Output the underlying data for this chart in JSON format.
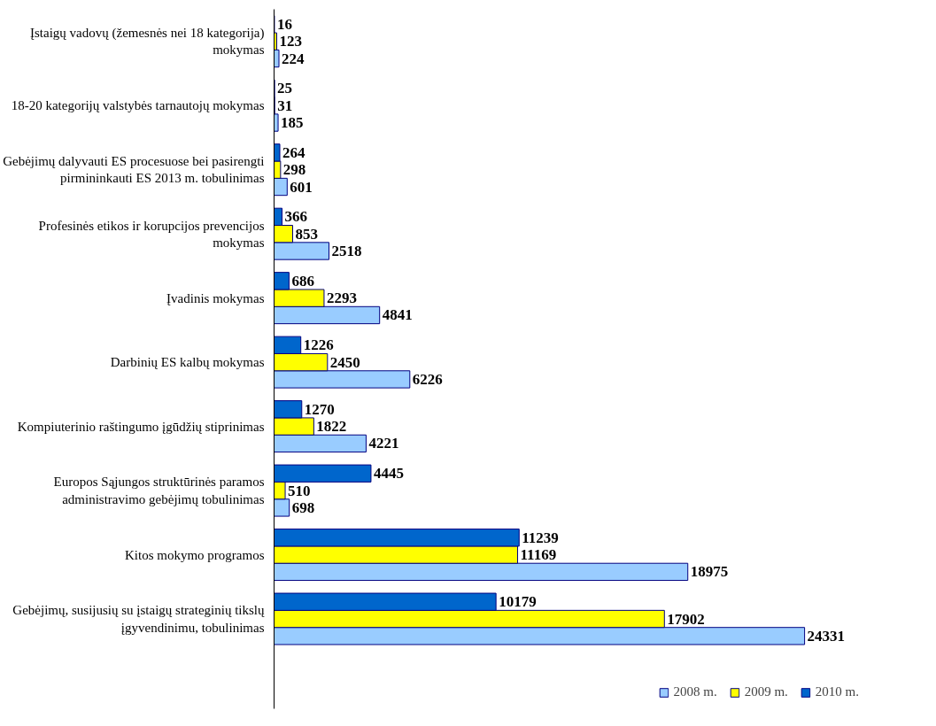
{
  "chart_data": {
    "type": "bar",
    "orientation": "horizontal",
    "categories": [
      "Įstaigų vadovų (žemesnės nei 18 kategorija) mokymas",
      "18-20 kategorijų valstybės tarnautojų mokymas",
      "Gebėjimų dalyvauti ES procesuose bei pasirengti pirmininkauti ES 2013 m. tobulinimas",
      "Profesinės etikos ir korupcijos prevencijos mokymas",
      "Įvadinis mokymas",
      "Darbinių ES kalbų mokymas",
      "Kompiuterinio raštingumo įgūdžių stiprinimas",
      "Europos Sąjungos struktūrinės paramos administravimo gebėjimų tobulinimas",
      "Kitos mokymo programos",
      "Gebėjimų, susijusių su įstaigų strateginių tikslų įgyvendinimu, tobulinimas"
    ],
    "series": [
      {
        "name": "2008 m.",
        "color": "#99ccff",
        "values": [
          224,
          185,
          601,
          2518,
          4841,
          6226,
          4221,
          698,
          18975,
          24331
        ]
      },
      {
        "name": "2009 m.",
        "color": "#ffff00",
        "values": [
          123,
          31,
          298,
          853,
          2293,
          2450,
          1822,
          510,
          11169,
          17902
        ]
      },
      {
        "name": "2010 m.",
        "color": "#0066cc",
        "values": [
          16,
          25,
          264,
          366,
          686,
          1226,
          1270,
          4445,
          11239,
          10179
        ]
      }
    ],
    "data_labels": true,
    "legend": "bottom right",
    "grid": false,
    "tick_labels": "y"
  }
}
